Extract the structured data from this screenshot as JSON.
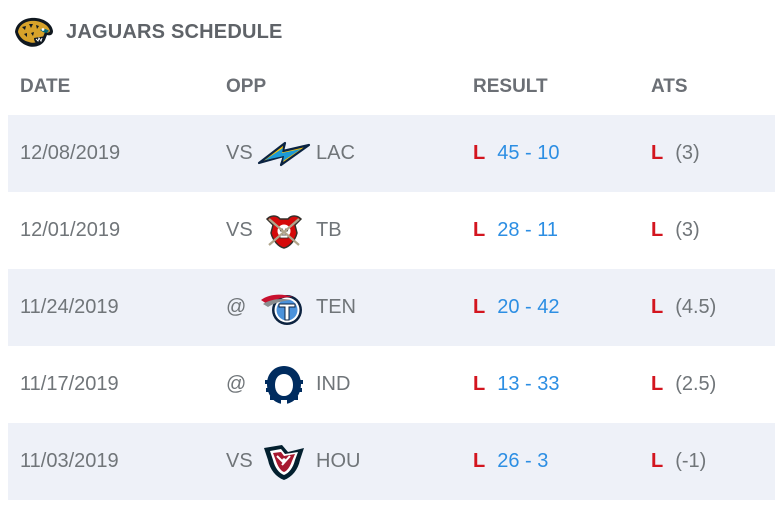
{
  "header": {
    "title": "JAGUARS SCHEDULE",
    "logo_icon": "jaguars-logo-icon"
  },
  "columns": {
    "date": "DATE",
    "opp": "OPP",
    "result": "RESULT",
    "ats": "ATS"
  },
  "colors": {
    "loss": "#d3151f",
    "score_link": "#2c8ee3",
    "row_shade": "#eef1f8",
    "muted_text": "#707579"
  },
  "games": [
    {
      "date": "12/08/2019",
      "location": "VS",
      "opponent": "LAC",
      "logo_icon": "chargers-logo-icon",
      "result": "L",
      "score": "45 - 10",
      "ats_result": "L",
      "ats_line": "(3)"
    },
    {
      "date": "12/01/2019",
      "location": "VS",
      "opponent": "TB",
      "logo_icon": "buccaneers-logo-icon",
      "result": "L",
      "score": "28 - 11",
      "ats_result": "L",
      "ats_line": "(3)"
    },
    {
      "date": "11/24/2019",
      "location": "@",
      "opponent": "TEN",
      "logo_icon": "titans-logo-icon",
      "result": "L",
      "score": "20 - 42",
      "ats_result": "L",
      "ats_line": "(4.5)"
    },
    {
      "date": "11/17/2019",
      "location": "@",
      "opponent": "IND",
      "logo_icon": "colts-logo-icon",
      "result": "L",
      "score": "13 - 33",
      "ats_result": "L",
      "ats_line": "(2.5)"
    },
    {
      "date": "11/03/2019",
      "location": "VS",
      "opponent": "HOU",
      "logo_icon": "texans-logo-icon",
      "result": "L",
      "score": "26 - 3",
      "ats_result": "L",
      "ats_line": "(-1)"
    }
  ]
}
